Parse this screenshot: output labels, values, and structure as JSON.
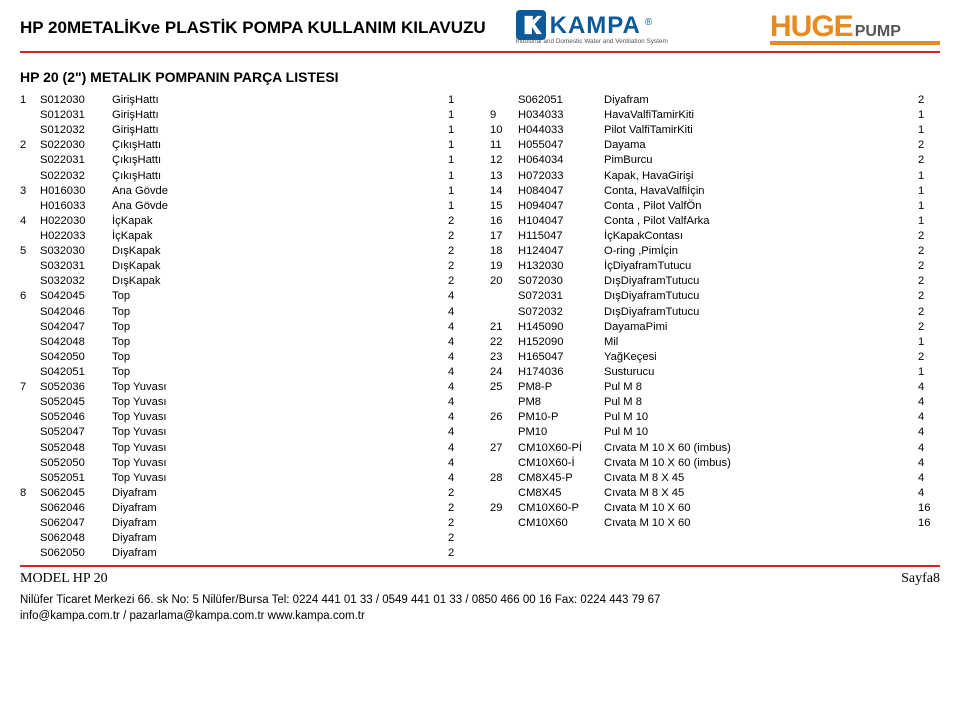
{
  "header": {
    "title": "HP 20METALİKve PLASTİK POMPA KULLANIM  KILAVUZU",
    "kampa_name": "KAMPA",
    "kampa_r": "®",
    "kampa_tagline": "Industrial and Domestic Water and Ventilation System",
    "huge1": "HUGE",
    "huge2": "PUMP"
  },
  "section_title": "HP 20 (2\") METALIK POMPANIN PARÇA LISTESI",
  "left": [
    {
      "g": "1",
      "code": "S012030",
      "desc": "GirişHattı",
      "qty": "1"
    },
    {
      "g": "",
      "code": "S012031",
      "desc": "GirişHattı",
      "qty": "1"
    },
    {
      "g": "",
      "code": "S012032",
      "desc": "GirişHattı",
      "qty": "1"
    },
    {
      "g": "2",
      "code": "S022030",
      "desc": "ÇıkışHattı",
      "qty": "1"
    },
    {
      "g": "",
      "code": "S022031",
      "desc": "ÇıkışHattı",
      "qty": "1"
    },
    {
      "g": "",
      "code": "S022032",
      "desc": "ÇıkışHattı",
      "qty": "1"
    },
    {
      "g": "3",
      "code": "H016030",
      "desc": "Ana Gövde",
      "qty": "1"
    },
    {
      "g": "",
      "code": "H016033",
      "desc": "Ana Gövde",
      "qty": "1"
    },
    {
      "g": "4",
      "code": "H022030",
      "desc": "İçKapak",
      "qty": "2"
    },
    {
      "g": "",
      "code": "H022033",
      "desc": "İçKapak",
      "qty": "2"
    },
    {
      "g": "5",
      "code": "S032030",
      "desc": "DışKapak",
      "qty": "2"
    },
    {
      "g": "",
      "code": "S032031",
      "desc": "DışKapak",
      "qty": "2"
    },
    {
      "g": "",
      "code": "S032032",
      "desc": "DışKapak",
      "qty": "2"
    },
    {
      "g": "6",
      "code": "S042045",
      "desc": "Top",
      "qty": "4"
    },
    {
      "g": "",
      "code": "S042046",
      "desc": "Top",
      "qty": "4"
    },
    {
      "g": "",
      "code": "S042047",
      "desc": "Top",
      "qty": "4"
    },
    {
      "g": "",
      "code": "S042048",
      "desc": "Top",
      "qty": "4"
    },
    {
      "g": "",
      "code": "S042050",
      "desc": "Top",
      "qty": "4"
    },
    {
      "g": "",
      "code": "S042051",
      "desc": "Top",
      "qty": "4"
    },
    {
      "g": "7",
      "code": "S052036",
      "desc": "Top Yuvası",
      "qty": "4"
    },
    {
      "g": "",
      "code": "S052045",
      "desc": "Top Yuvası",
      "qty": "4"
    },
    {
      "g": "",
      "code": "S052046",
      "desc": "Top Yuvası",
      "qty": "4"
    },
    {
      "g": "",
      "code": "S052047",
      "desc": "Top Yuvası",
      "qty": "4"
    },
    {
      "g": "",
      "code": "S052048",
      "desc": "Top Yuvası",
      "qty": "4"
    },
    {
      "g": "",
      "code": "S052050",
      "desc": "Top Yuvası",
      "qty": "4"
    },
    {
      "g": "",
      "code": "S052051",
      "desc": "Top Yuvası",
      "qty": "4"
    },
    {
      "g": "8",
      "code": "S062045",
      "desc": "Diyafram",
      "qty": "2"
    },
    {
      "g": "",
      "code": "S062046",
      "desc": "Diyafram",
      "qty": "2"
    },
    {
      "g": "",
      "code": "S062047",
      "desc": "Diyafram",
      "qty": "2"
    },
    {
      "g": "",
      "code": "S062048",
      "desc": "Diyafram",
      "qty": "2"
    },
    {
      "g": "",
      "code": "S062050",
      "desc": "Diyafram",
      "qty": "2"
    }
  ],
  "right": [
    {
      "g": "",
      "code": "S062051",
      "desc": "Diyafram",
      "qty": "2"
    },
    {
      "g": "9",
      "code": "H034033",
      "desc": "HavaValfiTamirKiti",
      "qty": "1"
    },
    {
      "g": "10",
      "code": "H044033",
      "desc": "Pilot ValfiTamirKiti",
      "qty": "1"
    },
    {
      "g": "11",
      "code": "H055047",
      "desc": "Dayama",
      "qty": "2"
    },
    {
      "g": "12",
      "code": "H064034",
      "desc": "PimBurcu",
      "qty": "2"
    },
    {
      "g": "13",
      "code": "H072033",
      "desc": "Kapak, HavaGirişi",
      "qty": "1"
    },
    {
      "g": "14",
      "code": "H084047",
      "desc": "Conta, HavaValfiİçin",
      "qty": "1"
    },
    {
      "g": "15",
      "code": "H094047",
      "desc": "Conta , Pilot ValfÖn",
      "qty": "1"
    },
    {
      "g": "16",
      "code": "H104047",
      "desc": "Conta , Pilot ValfArka",
      "qty": "1"
    },
    {
      "g": "17",
      "code": "H115047",
      "desc": "İçKapakContası",
      "qty": "2"
    },
    {
      "g": "18",
      "code": "H124047",
      "desc": "O-ring ,Pimİçin",
      "qty": "2"
    },
    {
      "g": "19",
      "code": "H132030",
      "desc": "İçDiyaframTutucu",
      "qty": "2"
    },
    {
      "g": "20",
      "code": "S072030",
      "desc": "DışDiyaframTutucu",
      "qty": "2"
    },
    {
      "g": "",
      "code": "S072031",
      "desc": "DışDiyaframTutucu",
      "qty": "2"
    },
    {
      "g": "",
      "code": "S072032",
      "desc": "DışDiyaframTutucu",
      "qty": "2"
    },
    {
      "g": "21",
      "code": "H145090",
      "desc": "DayamaPimi",
      "qty": "2"
    },
    {
      "g": "22",
      "code": "H152090",
      "desc": "Mil",
      "qty": "1"
    },
    {
      "g": "23",
      "code": "H165047",
      "desc": "YağKeçesi",
      "qty": "2"
    },
    {
      "g": "24",
      "code": "H174036",
      "desc": "Susturucu",
      "qty": "1"
    },
    {
      "g": "25",
      "code": "PM8-P",
      "desc": "Pul   M 8",
      "qty": "4"
    },
    {
      "g": "",
      "code": "PM8",
      "desc": "Pul   M 8",
      "qty": "4"
    },
    {
      "g": "26",
      "code": "PM10-P",
      "desc": "Pul   M 10",
      "qty": "4"
    },
    {
      "g": "",
      "code": "PM10",
      "desc": "Pul   M 10",
      "qty": "4"
    },
    {
      "g": "27",
      "code": "CM10X60-Pİ",
      "desc": "Cıvata M 10 X 60 (imbus)",
      "qty": "4"
    },
    {
      "g": "",
      "code": "CM10X60-İ",
      "desc": "Cıvata M 10 X 60 (imbus)",
      "qty": "4"
    },
    {
      "g": "28",
      "code": "CM8X45-P",
      "desc": "Cıvata M 8 X 45",
      "qty": "4"
    },
    {
      "g": "",
      "code": "CM8X45",
      "desc": "Cıvata M 8 X 45",
      "qty": "4"
    },
    {
      "g": "29",
      "code": "CM10X60-P",
      "desc": "Cıvata M 10 X 60",
      "qty": "16"
    },
    {
      "g": "",
      "code": "CM10X60",
      "desc": "Cıvata M 10 X 60",
      "qty": "16"
    }
  ],
  "footer": {
    "model": "MODEL HP 20",
    "page": "Sayfa8",
    "line1": "Nilüfer Ticaret Merkezi  66. sk No: 5 Nilüfer/Bursa  Tel: 0224 441 01 33 / 0549 441 01 33 / 0850 466 00 16 Fax: 0224 443 79 67",
    "line2": "info@kampa.com.tr  / pazarlama@kampa.com.tr www.kampa.com.tr"
  },
  "colors": {
    "rule": "#c62828",
    "kampa": "#0b5a99",
    "huge": "#e98a1f"
  }
}
